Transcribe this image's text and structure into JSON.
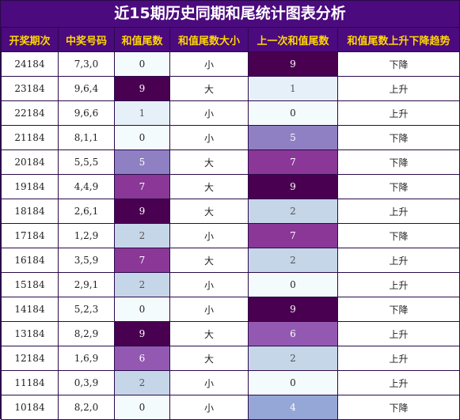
{
  "title": "近15期历史同期和尾统计图表分析",
  "headers": [
    "开奖期次",
    "中奖号码",
    "和值尾数",
    "和值尾数大小",
    "上一次和值尾数",
    "和值尾数上升下降趋势"
  ],
  "rows": [
    {
      "period": "24184",
      "numbers": "7,3,0",
      "tail": "0",
      "size": "小",
      "prev_tail": "9",
      "trend": "下降"
    },
    {
      "period": "23184",
      "numbers": "9,6,4",
      "tail": "9",
      "size": "大",
      "prev_tail": "1",
      "trend": "上升"
    },
    {
      "period": "22184",
      "numbers": "9,6,6",
      "tail": "1",
      "size": "小",
      "prev_tail": "0",
      "trend": "上升"
    },
    {
      "period": "21184",
      "numbers": "8,1,1",
      "tail": "0",
      "size": "小",
      "prev_tail": "5",
      "trend": "下降"
    },
    {
      "period": "20184",
      "numbers": "5,5,5",
      "tail": "5",
      "size": "大",
      "prev_tail": "7",
      "trend": "下降"
    },
    {
      "period": "19184",
      "numbers": "4,4,9",
      "tail": "7",
      "size": "大",
      "prev_tail": "9",
      "trend": "下降"
    },
    {
      "period": "18184",
      "numbers": "2,6,1",
      "tail": "9",
      "size": "大",
      "prev_tail": "2",
      "trend": "上升"
    },
    {
      "period": "17184",
      "numbers": "1,2,9",
      "tail": "2",
      "size": "小",
      "prev_tail": "7",
      "trend": "下降"
    },
    {
      "period": "16184",
      "numbers": "3,5,9",
      "tail": "7",
      "size": "大",
      "prev_tail": "2",
      "trend": "上升"
    },
    {
      "period": "15184",
      "numbers": "2,9,1",
      "tail": "2",
      "size": "小",
      "prev_tail": "0",
      "trend": "上升"
    },
    {
      "period": "14184",
      "numbers": "5,2,3",
      "tail": "0",
      "size": "小",
      "prev_tail": "9",
      "trend": "下降"
    },
    {
      "period": "13184",
      "numbers": "8,2,9",
      "tail": "9",
      "size": "大",
      "prev_tail": "6",
      "trend": "上升"
    },
    {
      "period": "12184",
      "numbers": "1,6,9",
      "tail": "6",
      "size": "大",
      "prev_tail": "2",
      "trend": "上升"
    },
    {
      "period": "11184",
      "numbers": "0,3,9",
      "tail": "2",
      "size": "小",
      "prev_tail": "0",
      "trend": "上升"
    },
    {
      "period": "10184",
      "numbers": "8,2,0",
      "tail": "0",
      "size": "小",
      "prev_tail": "4",
      "trend": "下降"
    }
  ],
  "colors": {
    "header_bg": "#4b0a7d",
    "header_text": "#ffd700",
    "tail_0": "#f4fbfd",
    "tail_1": "#e6f0f8",
    "tail_2": "#c5d6e8",
    "tail_4": "#95a7d6",
    "tail_5": "#8e80c2",
    "tail_6": "#9359b2",
    "tail_7": "#8a3797",
    "tail_9": "#4a0050"
  }
}
